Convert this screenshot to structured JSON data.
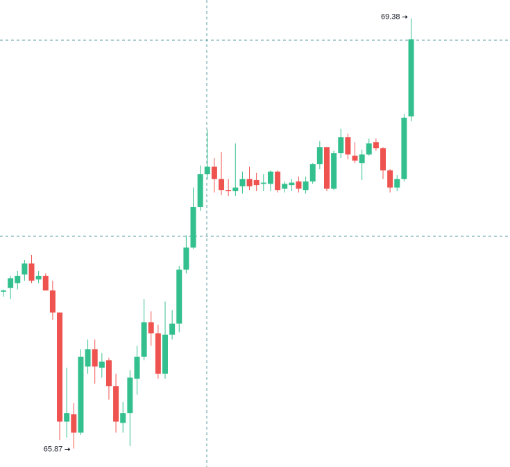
{
  "chart_data": {
    "type": "candlestick",
    "ylim": [
      65.72,
      69.53
    ],
    "up_color": "#34c08e",
    "down_color": "#ef5350",
    "open": [
      67.15,
      67.18,
      67.22,
      67.29,
      67.38,
      67.25,
      67.28,
      67.16,
      66.98,
      66.09,
      66.15,
      66.0,
      66.54,
      66.68,
      66.53,
      66.59,
      66.38,
      66.08,
      66.16,
      66.44,
      66.62,
      66.9,
      66.81,
      66.48,
      66.8,
      66.89,
      67.33,
      67.51,
      67.84,
      68.11,
      68.17,
      68.07,
      67.98,
      67.97,
      68.01,
      68.07,
      68.06,
      68.03,
      68.03,
      68.13,
      67.99,
      68.02,
      68.05,
      67.98,
      68.05,
      68.19,
      68.33,
      67.99,
      68.28,
      68.41,
      68.26,
      68.2,
      68.27,
      68.37,
      68.32,
      68.14,
      68.0,
      68.07,
      68.58
    ],
    "high": [
      67.17,
      67.28,
      67.32,
      67.41,
      67.45,
      67.32,
      67.3,
      67.24,
      66.98,
      66.53,
      66.24,
      66.68,
      66.76,
      66.76,
      66.65,
      66.61,
      66.48,
      66.25,
      66.51,
      66.71,
      67.09,
      66.99,
      66.88,
      67.07,
      67.0,
      67.36,
      67.61,
      68.0,
      68.18,
      68.47,
      68.24,
      68.29,
      68.07,
      68.36,
      68.13,
      68.17,
      68.12,
      68.11,
      68.14,
      68.14,
      68.05,
      68.07,
      68.09,
      68.09,
      68.2,
      68.38,
      68.33,
      68.3,
      68.48,
      68.44,
      68.37,
      68.31,
      68.4,
      68.4,
      68.33,
      68.15,
      68.1,
      68.6,
      69.38
    ],
    "low": [
      67.11,
      67.09,
      67.17,
      67.24,
      67.22,
      67.22,
      67.16,
      66.92,
      65.94,
      65.96,
      65.87,
      65.98,
      66.48,
      66.4,
      66.45,
      66.27,
      66.0,
      66.0,
      65.89,
      66.31,
      66.59,
      66.71,
      66.44,
      66.44,
      66.76,
      66.82,
      67.3,
      67.5,
      67.81,
      68.07,
      67.96,
      67.94,
      67.93,
      67.93,
      67.95,
      67.98,
      67.97,
      67.97,
      67.97,
      67.96,
      67.96,
      67.97,
      67.96,
      67.95,
      68.03,
      68.15,
      67.97,
      67.98,
      68.24,
      68.23,
      68.2,
      68.06,
      68.26,
      68.3,
      68.07,
      67.96,
      67.97,
      68.05,
      68.54
    ],
    "close": [
      67.16,
      67.26,
      67.28,
      67.38,
      67.24,
      67.28,
      67.16,
      66.98,
      66.09,
      66.16,
      66.0,
      66.62,
      66.68,
      66.54,
      66.58,
      66.38,
      66.09,
      66.16,
      66.45,
      66.62,
      66.9,
      66.81,
      66.48,
      66.8,
      66.89,
      67.33,
      67.51,
      67.84,
      68.11,
      68.17,
      68.07,
      67.98,
      67.97,
      68.0,
      68.07,
      68.01,
      68.02,
      68.04,
      68.13,
      67.98,
      68.03,
      68.04,
      67.99,
      68.05,
      68.19,
      68.33,
      67.99,
      68.28,
      68.41,
      68.27,
      68.22,
      68.27,
      68.36,
      68.32,
      68.14,
      68.0,
      68.07,
      68.57,
      69.21
    ]
  }
}
